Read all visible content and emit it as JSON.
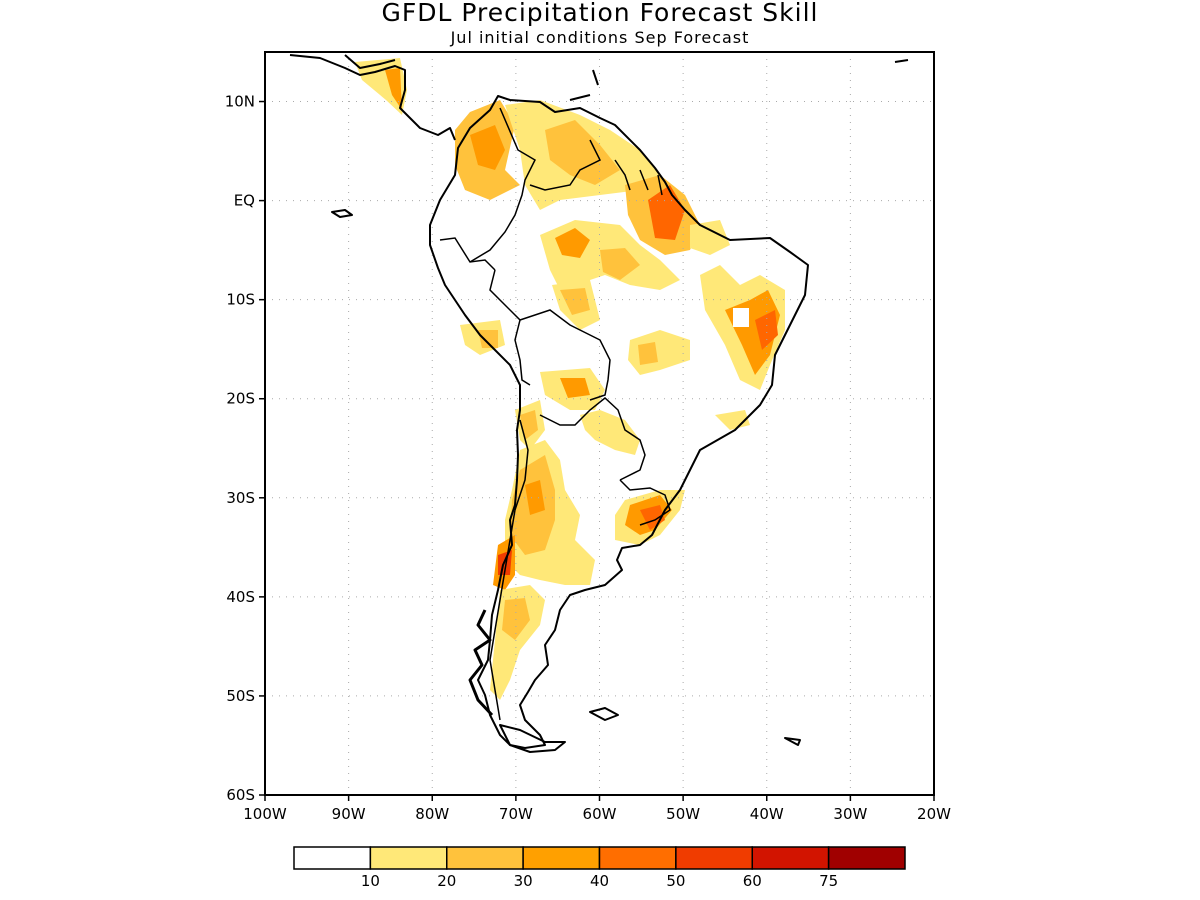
{
  "title": "GFDL Precipitation Forecast Skill",
  "subtitle": "Jul initial conditions  Sep Forecast",
  "map": {
    "region": "South America",
    "lon_range": [
      -100,
      -20
    ],
    "lat_range": [
      -60,
      15
    ],
    "lat_ticks": [
      "10N",
      "EQ",
      "10S",
      "20S",
      "30S",
      "40S",
      "50S",
      "60S"
    ],
    "lon_ticks": [
      "100W",
      "90W",
      "80W",
      "70W",
      "60W",
      "50W",
      "40W",
      "30W",
      "20W"
    ],
    "gridlines": "dotted"
  },
  "colorbar": {
    "labels": [
      "10",
      "20",
      "30",
      "40",
      "50",
      "60",
      "75"
    ],
    "colors": [
      "#ffffff",
      "#ffe878",
      "#ffc23c",
      "#ffa000",
      "#ff6e00",
      "#f03c00",
      "#d21400",
      "#a00000"
    ]
  },
  "skill_colors": {
    "c20": "#ffe878",
    "c30": "#ffc23c",
    "c40": "#ff9a00",
    "c50": "#ff6600",
    "c60": "#f03c00"
  }
}
